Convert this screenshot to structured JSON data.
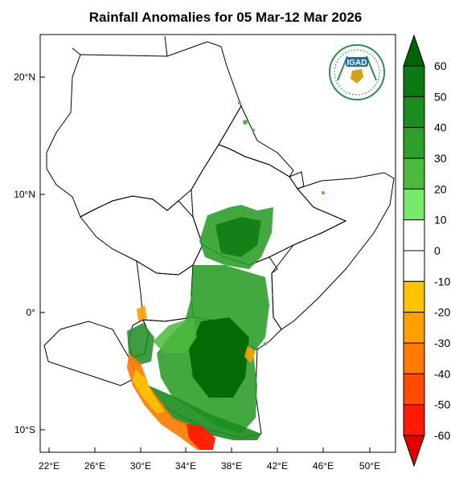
{
  "title": "Rainfall Anomalies for 05 Mar-12 Mar 2026",
  "map": {
    "lon_ticks": [
      "22°E",
      "26°E",
      "30°E",
      "34°E",
      "38°E",
      "42°E",
      "46°E",
      "50°E"
    ],
    "lat_ticks": [
      "20°N",
      "10°N",
      "0°",
      "10°S"
    ]
  },
  "colorbar": {
    "labels": [
      "60",
      "50",
      "40",
      "30",
      "20",
      "10",
      "0",
      "-10",
      "-20",
      "-30",
      "-40",
      "-50",
      "-60"
    ],
    "colors": [
      "#006400",
      "#0b7a12",
      "#1b8c1e",
      "#2e9f2a",
      "#4cba3c",
      "#78e86a",
      "#ffffff",
      "#ffffff",
      "#ffc400",
      "#ffa000",
      "#ff7a00",
      "#ff4c00",
      "#ff1a00",
      "#e00000"
    ]
  },
  "logo": {
    "text": "IGAD"
  }
}
